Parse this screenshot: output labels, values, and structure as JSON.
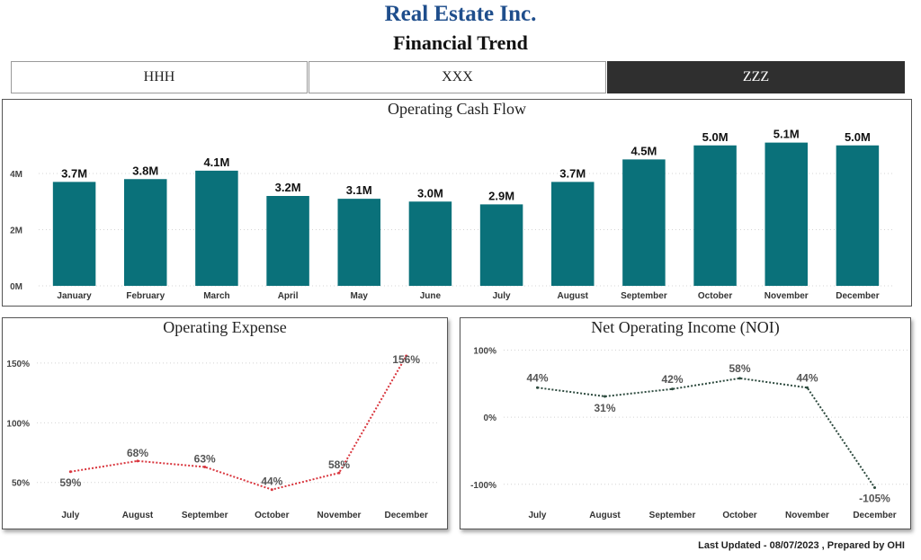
{
  "header": {
    "company": "Real Estate Inc.",
    "subtitle": "Financial Trend"
  },
  "tabs": [
    {
      "label": "HHH",
      "active": false
    },
    {
      "label": "XXX",
      "active": false
    },
    {
      "label": "ZZZ",
      "active": true
    }
  ],
  "footer": {
    "text": "Last Updated - 08/07/2023 , Prepared by OHI"
  },
  "colors": {
    "bar": "#0a717a",
    "expense_line": "#d9363e",
    "noi_line": "#2d4a3e",
    "title_blue": "#1f4e8c",
    "active_tab": "#2f2f2f"
  },
  "chart_data": [
    {
      "type": "bar",
      "title": "Operating Cash Flow",
      "categories": [
        "January",
        "February",
        "March",
        "April",
        "May",
        "June",
        "July",
        "August",
        "September",
        "October",
        "November",
        "December"
      ],
      "values": [
        3.7,
        3.8,
        4.1,
        3.2,
        3.1,
        3.0,
        2.9,
        3.7,
        4.5,
        5.0,
        5.1,
        5.0
      ],
      "value_labels": [
        "3.7M",
        "3.8M",
        "4.1M",
        "3.2M",
        "3.1M",
        "3.0M",
        "2.9M",
        "3.7M",
        "4.5M",
        "5.0M",
        "5.1M",
        "5.0M"
      ],
      "yticks": [
        0,
        2,
        4
      ],
      "ytick_labels": [
        "0M",
        "2M",
        "4M"
      ],
      "ylim": [
        0,
        5.6
      ],
      "grid": true
    },
    {
      "type": "line",
      "title": "Operating Expense",
      "categories": [
        "July",
        "August",
        "September",
        "October",
        "November",
        "December"
      ],
      "values": [
        59,
        68,
        63,
        44,
        58,
        156
      ],
      "value_labels": [
        "59%",
        "68%",
        "63%",
        "44%",
        "58%",
        "156%"
      ],
      "yticks": [
        50,
        100,
        150
      ],
      "ytick_labels": [
        "50%",
        "100%",
        "150%"
      ],
      "ylim": [
        40,
        165
      ],
      "line_style": "dotted",
      "grid": true
    },
    {
      "type": "line",
      "title": "Net Operating Income (NOI)",
      "categories": [
        "July",
        "August",
        "September",
        "October",
        "November",
        "December"
      ],
      "values": [
        44,
        31,
        42,
        58,
        44,
        -105
      ],
      "value_labels": [
        "44%",
        "31%",
        "42%",
        "58%",
        "44%",
        "-105%"
      ],
      "yticks": [
        -100,
        0,
        100
      ],
      "ytick_labels": [
        "-100%",
        "0%",
        "100%"
      ],
      "ylim": [
        -115,
        110
      ],
      "line_style": "dotted",
      "grid": true
    }
  ]
}
